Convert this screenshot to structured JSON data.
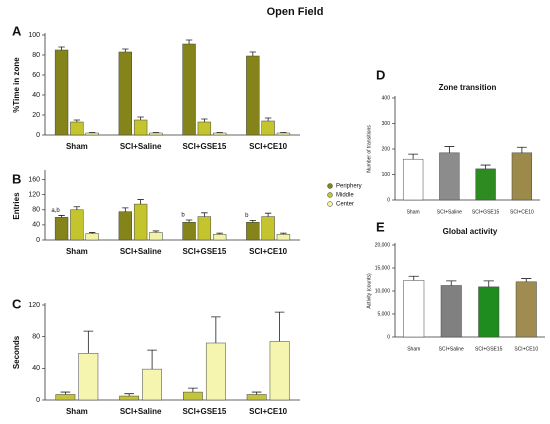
{
  "title": "Open Field",
  "chart_data": [
    {
      "type": "bar",
      "panel": "A",
      "ylabel": "%Time in zone",
      "categories": [
        "Sham",
        "SCI+Saline",
        "SCI+GSE15",
        "SCI+CE10"
      ],
      "ylim": [
        0,
        100
      ],
      "yticks": [
        0,
        20,
        40,
        60,
        80,
        100
      ],
      "series": [
        {
          "color": "#84841a",
          "values": [
            85,
            83,
            91,
            79
          ],
          "errors": [
            3,
            3,
            4,
            4
          ]
        },
        {
          "color": "#c4c42e",
          "values": [
            13,
            15,
            13,
            14
          ],
          "errors": [
            2,
            3,
            3,
            3
          ]
        },
        {
          "color": "#f3f3a8",
          "values": [
            2,
            2,
            2,
            2
          ],
          "errors": [
            0.5,
            0.5,
            0.5,
            0.5
          ]
        }
      ]
    },
    {
      "type": "bar",
      "panel": "B",
      "ylabel": "Entries",
      "categories": [
        "Sham",
        "SCI+Saline",
        "SCI+GSE15",
        "SCI+CE10"
      ],
      "ylim": [
        0,
        180
      ],
      "yticks": [
        0,
        40,
        80,
        120,
        160
      ],
      "series": [
        {
          "name": "Periphery",
          "color": "#84841a",
          "values": [
            60,
            75,
            47,
            47
          ],
          "errors": [
            5,
            10,
            6,
            5
          ]
        },
        {
          "name": "Middle",
          "color": "#c4c42e",
          "values": [
            80,
            95,
            62,
            62
          ],
          "errors": [
            8,
            12,
            10,
            9
          ]
        },
        {
          "name": "Center",
          "color": "#f3f3a8",
          "values": [
            17,
            20,
            15,
            15
          ],
          "errors": [
            3,
            4,
            3,
            3
          ]
        }
      ],
      "annotations": [
        {
          "text": "a,b",
          "series": 0,
          "category": 0
        },
        {
          "text": "b",
          "series": 0,
          "category": 2
        },
        {
          "text": "b",
          "series": 0,
          "category": 3
        }
      ]
    },
    {
      "type": "bar",
      "panel": "C",
      "ylabel": "Seconds",
      "categories": [
        "Sham",
        "SCI+Saline",
        "SCI+GSE15",
        "SCI+CE10"
      ],
      "ylim": [
        0,
        120
      ],
      "yticks": [
        0,
        40,
        80,
        120
      ],
      "series": [
        {
          "color": "#c4c43a",
          "values": [
            7,
            5,
            10,
            7
          ],
          "errors": [
            3,
            3,
            5,
            3
          ]
        },
        {
          "color": "#f5f5b0",
          "values": [
            59,
            39,
            72,
            74
          ],
          "errors": [
            28,
            24,
            33,
            37
          ]
        }
      ]
    },
    {
      "type": "bar",
      "panel": "D",
      "title": "Zone transition",
      "ylabel": "Number of transitions",
      "categories": [
        "Sham",
        "SCI+Saline",
        "SCI+GSE15",
        "SCI+CE10"
      ],
      "ylim": [
        0,
        400
      ],
      "yticks": [
        0,
        100,
        200,
        300,
        400
      ],
      "series": [
        {
          "colors": [
            "#ffffff",
            "#8c8c8c",
            "#2e8b22",
            "#9c8a4a"
          ],
          "values": [
            160,
            185,
            122,
            185
          ],
          "errors": [
            20,
            25,
            15,
            22
          ]
        }
      ]
    },
    {
      "type": "bar",
      "panel": "E",
      "title": "Global activity",
      "ylabel": "Activity (counts)",
      "categories": [
        "Sham",
        "SCI+Saline",
        "SCI+GSE15",
        "SCI+CE10"
      ],
      "ylim": [
        0,
        20000
      ],
      "yticks": [
        0,
        {
          "value": 5000,
          "label": "5,000"
        },
        {
          "value": 10000,
          "label": "10,000"
        },
        {
          "value": 15000,
          "label": "15,000"
        },
        {
          "value": 20000,
          "label": "20,000"
        }
      ],
      "series": [
        {
          "colors": [
            "#ffffff",
            "#808080",
            "#1e8c1e",
            "#a08c50"
          ],
          "values": [
            12300,
            11200,
            10900,
            12000
          ],
          "errors": [
            900,
            1000,
            1300,
            700
          ]
        }
      ]
    }
  ]
}
